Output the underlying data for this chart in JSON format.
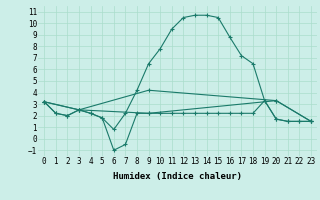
{
  "xlabel": "Humidex (Indice chaleur)",
  "bg_color": "#cceee8",
  "grid_color": "#aaddcc",
  "line_color": "#1a7a6a",
  "xlim": [
    -0.5,
    23.5
  ],
  "ylim": [
    -1.5,
    11.5
  ],
  "xticks": [
    0,
    1,
    2,
    3,
    4,
    5,
    6,
    7,
    8,
    9,
    10,
    11,
    12,
    13,
    14,
    15,
    16,
    17,
    18,
    19,
    20,
    21,
    22,
    23
  ],
  "yticks": [
    -1,
    0,
    1,
    2,
    3,
    4,
    5,
    6,
    7,
    8,
    9,
    10,
    11
  ],
  "line1_x": [
    0,
    1,
    2,
    3,
    4,
    5,
    6,
    7,
    8,
    9,
    10,
    11,
    12,
    13,
    14,
    15,
    16,
    17,
    18,
    19,
    20,
    21,
    22,
    23
  ],
  "line1_y": [
    3.2,
    2.2,
    2.0,
    2.5,
    2.2,
    1.8,
    0.8,
    2.2,
    4.2,
    6.5,
    7.8,
    9.5,
    10.5,
    10.7,
    10.7,
    10.5,
    8.8,
    7.2,
    6.5,
    3.3,
    1.7,
    1.5,
    1.5,
    1.5
  ],
  "line2_x": [
    0,
    1,
    2,
    3,
    4,
    5,
    6,
    7,
    8,
    9,
    10,
    11,
    12,
    13,
    14,
    15,
    16,
    17,
    18,
    19,
    20,
    21,
    22,
    23
  ],
  "line2_y": [
    3.2,
    2.2,
    2.0,
    2.5,
    2.2,
    1.8,
    -1.0,
    -0.5,
    2.2,
    2.2,
    2.2,
    2.2,
    2.2,
    2.2,
    2.2,
    2.2,
    2.2,
    2.2,
    2.2,
    3.3,
    1.7,
    1.5,
    1.5,
    1.5
  ],
  "line3_x": [
    0,
    3,
    9,
    20,
    23
  ],
  "line3_y": [
    3.2,
    2.5,
    4.2,
    3.3,
    1.5
  ],
  "line4_x": [
    0,
    3,
    9,
    20,
    23
  ],
  "line4_y": [
    3.2,
    2.5,
    2.2,
    3.3,
    1.5
  ]
}
